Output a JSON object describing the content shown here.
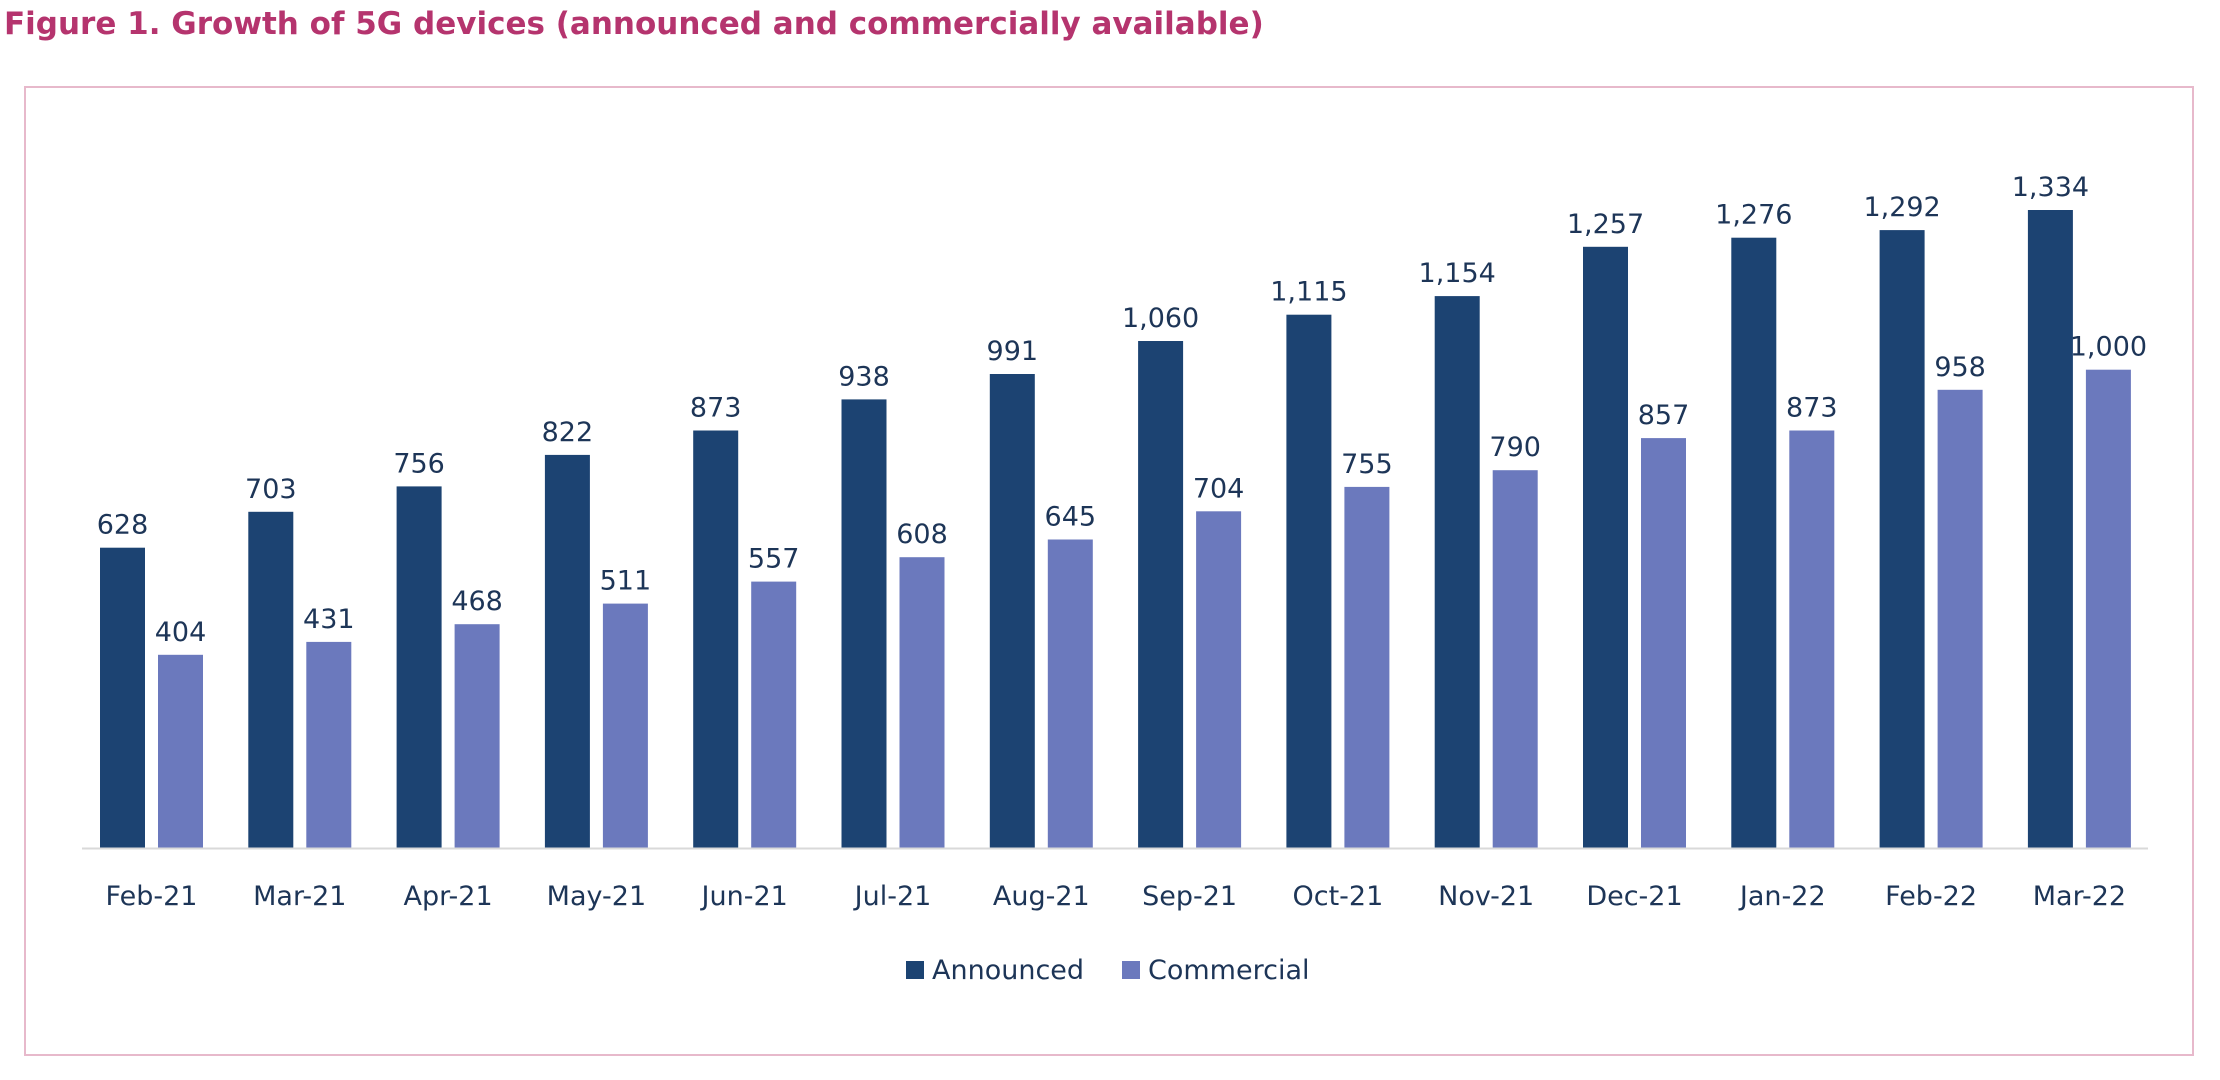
{
  "figure": {
    "title": "Figure 1. Growth of 5G devices (announced and commercially available)"
  },
  "colors": {
    "title": "#b5346e",
    "frame": "#e7b9cb",
    "text": "#1d3557",
    "axis": "#d9d9d9"
  },
  "chart_data": {
    "type": "bar",
    "categories": [
      "Feb-21",
      "Mar-21",
      "Apr-21",
      "May-21",
      "Jun-21",
      "Jul-21",
      "Aug-21",
      "Sep-21",
      "Oct-21",
      "Nov-21",
      "Dec-21",
      "Jan-22",
      "Feb-22",
      "Mar-22"
    ],
    "series": [
      {
        "name": "Announced",
        "color": "#1c4372",
        "values": [
          628,
          703,
          756,
          822,
          873,
          938,
          991,
          1060,
          1115,
          1154,
          1257,
          1276,
          1292,
          1334
        ],
        "labels": [
          "628",
          "703",
          "756",
          "822",
          "873",
          "938",
          "991",
          "1,060",
          "1,115",
          "1,154",
          "1,257",
          "1,276",
          "1,292",
          "1,334"
        ]
      },
      {
        "name": "Commercial",
        "color": "#6b79bd",
        "values": [
          404,
          431,
          468,
          511,
          557,
          608,
          645,
          704,
          755,
          790,
          857,
          873,
          958,
          1000
        ],
        "labels": [
          "404",
          "431",
          "468",
          "511",
          "557",
          "608",
          "645",
          "704",
          "755",
          "790",
          "857",
          "873",
          "958",
          "1,000"
        ]
      }
    ],
    "ylim": [
      0,
      1400
    ],
    "grid": false,
    "legend_position": "bottom-center"
  }
}
